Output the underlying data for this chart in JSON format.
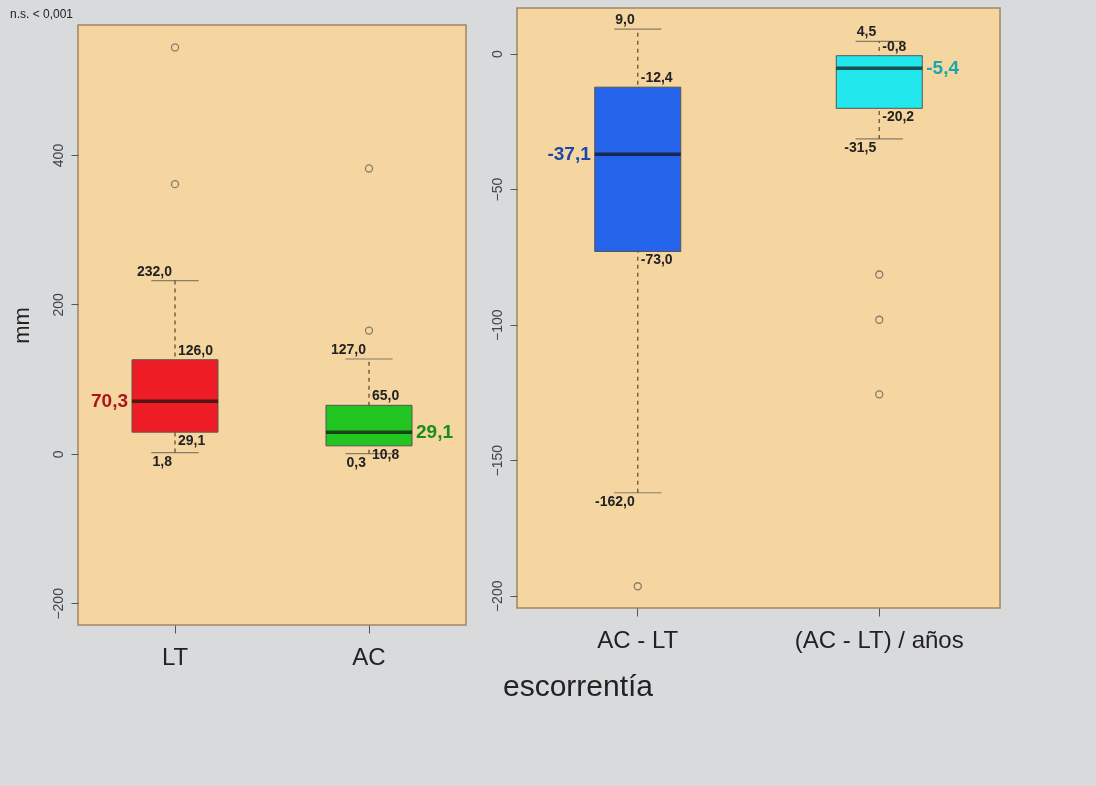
{
  "chart_data": [
    {
      "type": "box",
      "ylabel": "mm",
      "xlabel": "escorrentía",
      "categories": [
        "LT",
        "AC"
      ],
      "colors": [
        "#ee1c25",
        "#22c422"
      ],
      "ylim": [
        -229,
        574
      ],
      "yticks": [
        -200,
        0,
        200,
        400
      ],
      "grid": false,
      "annotations": [
        "n.s. < 0,001",
        {
          "text": "232,0",
          "x": "LT",
          "y": 232.0
        },
        {
          "text": "126,0",
          "x": "LT",
          "y": 126.0
        },
        {
          "text": "70,3",
          "x": "LT",
          "y": 70.3
        },
        {
          "text": "29,1",
          "x": "LT",
          "y": 29.1
        },
        {
          "text": "1,8",
          "x": "LT",
          "y": 1.8
        },
        {
          "text": "127,0",
          "x": "AC",
          "y": 127.0
        },
        {
          "text": "65,0",
          "x": "AC",
          "y": 65.0
        },
        {
          "text": "29,1",
          "x": "AC",
          "y": 29.1
        },
        {
          "text": "10,8",
          "x": "AC",
          "y": 10.8
        },
        {
          "text": "0,3",
          "x": "AC",
          "y": 0.3
        }
      ],
      "boxes": [
        {
          "low": 1.8,
          "q1": 29.1,
          "median": 70.3,
          "q3": 126.0,
          "high": 232.0,
          "outliers": [
            544,
            361
          ]
        },
        {
          "low": 0.3,
          "q1": 10.8,
          "median": 29.1,
          "q3": 65.0,
          "high": 127.0,
          "outliers": [
            382,
            165
          ]
        }
      ]
    },
    {
      "type": "box",
      "categories": [
        "AC - LT",
        "(AC - LT) / años"
      ],
      "colors": [
        "#2563eb",
        "#22e8ee"
      ],
      "ylim": [
        -204.5,
        16.8
      ],
      "yticks": [
        0,
        -50,
        -100,
        -150,
        -200
      ],
      "grid": false,
      "annotations": [
        {
          "text": "9,0",
          "x": "AC - LT",
          "y": 9.0
        },
        {
          "text": "-12,4",
          "x": "AC - LT",
          "y": -12.4
        },
        {
          "text": "-37,1",
          "x": "AC - LT",
          "y": -37.1
        },
        {
          "text": "-73,0",
          "x": "AC - LT",
          "y": -73.0
        },
        {
          "text": "-162,0",
          "x": "AC - LT",
          "y": -162.0
        },
        {
          "text": "4,5",
          "x": "(AC - LT) / años",
          "y": 4.5
        },
        {
          "text": "-0,8",
          "x": "(AC - LT) / años",
          "y": -0.8
        },
        {
          "text": "-5,4",
          "x": "(AC - LT) / años",
          "y": -5.4
        },
        {
          "text": "-20,2",
          "x": "(AC - LT) / años",
          "y": -20.2
        },
        {
          "text": "-31,5",
          "x": "(AC - LT) / años",
          "y": -31.5
        }
      ],
      "boxes": [
        {
          "low": -162.0,
          "q1": -73.0,
          "median": -37.1,
          "q3": -12.4,
          "high": 9.0,
          "outliers": [
            -196.5
          ]
        },
        {
          "low": -31.5,
          "q1": -20.2,
          "median": -5.4,
          "q3": -0.8,
          "high": 4.5,
          "outliers": [
            -81.5,
            -98.2,
            -125.7
          ]
        }
      ]
    }
  ]
}
